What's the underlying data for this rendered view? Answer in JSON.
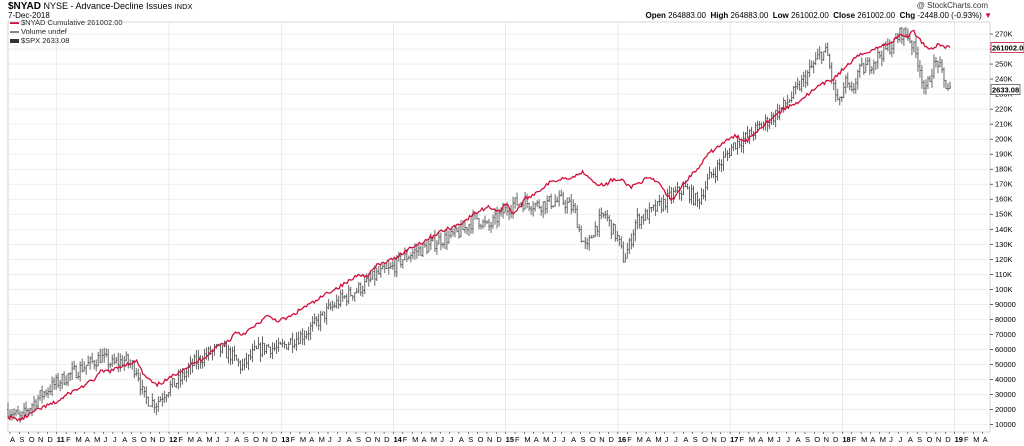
{
  "header": {
    "symbol": "$NYAD",
    "description": "NYSE - Advance-Decline Issues",
    "exchange": "INDX",
    "date": "7-Dec-2018",
    "open_label": "Open",
    "open": "264883.00",
    "high_label": "High",
    "high": "264883.00",
    "low_label": "Low",
    "low": "261002.00",
    "close_label": "Close",
    "close": "261002.00",
    "chg_label": "Chg",
    "chg": "-2448.00 (-0.93%)",
    "credit": "@ StockCharts.com"
  },
  "legend": [
    {
      "text": "$NYAD Cumulative 261002.00",
      "color": "#d0103a"
    },
    {
      "text": "Volume undef",
      "color": "#888888"
    },
    {
      "text": "$SPX 2633.08",
      "color": "#555555"
    }
  ],
  "colors": {
    "ad_line": "#d0103a",
    "spx": "#555555",
    "grid": "#e4e4e4",
    "axis": "#000000"
  },
  "chart_data": {
    "type": "line",
    "title": "$NYAD NYSE - Advance-Decline Issues",
    "yticks": [
      "10000",
      "20000",
      "30000",
      "40000",
      "50000",
      "60000",
      "70000",
      "80000",
      "90000",
      "100K",
      "110K",
      "120K",
      "130K",
      "140K",
      "150K",
      "160K",
      "170K",
      "180K",
      "190K",
      "200K",
      "210K",
      "220K",
      "230K",
      "240K",
      "250K",
      "260K",
      "270K"
    ],
    "ylim": [
      5000,
      278000
    ],
    "scale": "linear",
    "x_ticks": [
      "A",
      "S",
      "O",
      "N",
      "D",
      "11",
      "F",
      "M",
      "A",
      "M",
      "J",
      "J",
      "A",
      "S",
      "O",
      "N",
      "D",
      "12",
      "F",
      "M",
      "A",
      "M",
      "J",
      "J",
      "A",
      "S",
      "O",
      "N",
      "D",
      "13",
      "F",
      "M",
      "A",
      "M",
      "J",
      "J",
      "A",
      "S",
      "O",
      "N",
      "D",
      "14",
      "F",
      "M",
      "A",
      "M",
      "J",
      "J",
      "A",
      "S",
      "O",
      "N",
      "D",
      "15",
      "F",
      "M",
      "A",
      "M",
      "J",
      "J",
      "A",
      "S",
      "O",
      "N",
      "D",
      "16",
      "F",
      "M",
      "A",
      "M",
      "J",
      "J",
      "A",
      "S",
      "O",
      "N",
      "D",
      "17",
      "F",
      "M",
      "A",
      "M",
      "J",
      "J",
      "A",
      "S",
      "O",
      "N",
      "D",
      "18",
      "F",
      "M",
      "A",
      "M",
      "J",
      "J",
      "A",
      "S",
      "O",
      "N",
      "D",
      "19",
      "F",
      "M",
      "A"
    ],
    "last_values": {
      "ad_line": "261002.00",
      "spx": "2633.08"
    },
    "series": [
      {
        "name": "$NYAD Cumulative",
        "points": [
          [
            0,
            15000
          ],
          [
            2,
            13000
          ],
          [
            4,
            18000
          ],
          [
            6,
            22000
          ],
          [
            8,
            25000
          ],
          [
            10,
            31000
          ],
          [
            12,
            35000
          ],
          [
            14,
            40000
          ],
          [
            15,
            45000
          ],
          [
            17,
            46000
          ],
          [
            19,
            50000
          ],
          [
            21,
            52000
          ],
          [
            22,
            43000
          ],
          [
            24,
            36000
          ],
          [
            26,
            40000
          ],
          [
            28,
            46000
          ],
          [
            30,
            50000
          ],
          [
            32,
            55000
          ],
          [
            34,
            62000
          ],
          [
            36,
            66000
          ],
          [
            37,
            72000
          ],
          [
            38,
            70000
          ],
          [
            40,
            75000
          ],
          [
            42,
            82000
          ],
          [
            44,
            79000
          ],
          [
            46,
            82000
          ],
          [
            48,
            88000
          ],
          [
            50,
            92000
          ],
          [
            52,
            98000
          ],
          [
            54,
            102000
          ],
          [
            56,
            107000
          ],
          [
            57,
            111000
          ],
          [
            58,
            108000
          ],
          [
            60,
            116000
          ],
          [
            62,
            119000
          ],
          [
            64,
            124000
          ],
          [
            66,
            129000
          ],
          [
            68,
            133000
          ],
          [
            70,
            138000
          ],
          [
            72,
            141000
          ],
          [
            74,
            145000
          ],
          [
            76,
            151000
          ],
          [
            78,
            155000
          ],
          [
            80,
            152000
          ],
          [
            81,
            158000
          ],
          [
            82,
            150000
          ],
          [
            83,
            154000
          ],
          [
            84,
            160000
          ],
          [
            86,
            165000
          ],
          [
            88,
            171000
          ],
          [
            90,
            174000
          ],
          [
            92,
            175000
          ],
          [
            93,
            178000
          ],
          [
            94,
            177000
          ],
          [
            95,
            172000
          ],
          [
            96,
            170000
          ],
          [
            97,
            169000
          ],
          [
            98,
            173000
          ],
          [
            100,
            172000
          ],
          [
            101,
            168000
          ],
          [
            102,
            170000
          ],
          [
            104,
            174000
          ],
          [
            106,
            170000
          ],
          [
            107,
            162000
          ],
          [
            108,
            160000
          ],
          [
            110,
            172000
          ],
          [
            112,
            180000
          ],
          [
            114,
            191000
          ],
          [
            116,
            197000
          ],
          [
            118,
            202000
          ],
          [
            120,
            199000
          ],
          [
            122,
            207000
          ],
          [
            124,
            214000
          ],
          [
            126,
            220000
          ],
          [
            128,
            224000
          ],
          [
            130,
            230000
          ],
          [
            132,
            236000
          ],
          [
            134,
            240000
          ],
          [
            136,
            248000
          ],
          [
            138,
            255000
          ],
          [
            140,
            259000
          ],
          [
            142,
            262000
          ],
          [
            144,
            266000
          ],
          [
            145,
            270000
          ],
          [
            146,
            268000
          ],
          [
            147,
            272000
          ],
          [
            148,
            267000
          ],
          [
            149,
            262000
          ],
          [
            150,
            260000
          ],
          [
            151,
            263000
          ],
          [
            152,
            262000
          ],
          [
            153,
            261002
          ]
        ]
      },
      {
        "name": "$SPX",
        "points": [
          [
            0,
            20000
          ],
          [
            2,
            14000
          ],
          [
            4,
            24000
          ],
          [
            6,
            32000
          ],
          [
            8,
            38000
          ],
          [
            10,
            43000
          ],
          [
            12,
            48000
          ],
          [
            14,
            52000
          ],
          [
            15,
            55000
          ],
          [
            17,
            50000
          ],
          [
            19,
            53000
          ],
          [
            21,
            46000
          ],
          [
            22,
            28000
          ],
          [
            24,
            24000
          ],
          [
            26,
            34000
          ],
          [
            28,
            40000
          ],
          [
            30,
            50000
          ],
          [
            32,
            56000
          ],
          [
            34,
            60000
          ],
          [
            36,
            57000
          ],
          [
            38,
            48000
          ],
          [
            40,
            58000
          ],
          [
            42,
            62000
          ],
          [
            44,
            60000
          ],
          [
            46,
            66000
          ],
          [
            48,
            70000
          ],
          [
            50,
            77000
          ],
          [
            52,
            86000
          ],
          [
            54,
            93000
          ],
          [
            56,
            98000
          ],
          [
            58,
            103000
          ],
          [
            60,
            110000
          ],
          [
            62,
            113000
          ],
          [
            64,
            120000
          ],
          [
            66,
            125000
          ],
          [
            68,
            128000
          ],
          [
            70,
            133000
          ],
          [
            72,
            135000
          ],
          [
            74,
            140000
          ],
          [
            76,
            148000
          ],
          [
            78,
            141000
          ],
          [
            80,
            150000
          ],
          [
            82,
            157000
          ],
          [
            84,
            158000
          ],
          [
            86,
            156000
          ],
          [
            88,
            158000
          ],
          [
            90,
            159000
          ],
          [
            92,
            153000
          ],
          [
            93,
            136000
          ],
          [
            94,
            126000
          ],
          [
            95,
            139000
          ],
          [
            96,
            145000
          ],
          [
            97,
            150000
          ],
          [
            98,
            141000
          ],
          [
            99,
            134000
          ],
          [
            100,
            120000
          ],
          [
            101,
            130000
          ],
          [
            102,
            146000
          ],
          [
            104,
            150000
          ],
          [
            106,
            156000
          ],
          [
            108,
            163000
          ],
          [
            110,
            167000
          ],
          [
            112,
            158000
          ],
          [
            114,
            175000
          ],
          [
            116,
            185000
          ],
          [
            118,
            197000
          ],
          [
            120,
            201000
          ],
          [
            122,
            208000
          ],
          [
            124,
            214000
          ],
          [
            126,
            222000
          ],
          [
            128,
            232000
          ],
          [
            130,
            244000
          ],
          [
            132,
            257000
          ],
          [
            133,
            258000
          ],
          [
            134,
            236000
          ],
          [
            135,
            222000
          ],
          [
            136,
            238000
          ],
          [
            137,
            229000
          ],
          [
            138,
            244000
          ],
          [
            140,
            250000
          ],
          [
            142,
            258000
          ],
          [
            144,
            264000
          ],
          [
            145,
            271000
          ],
          [
            146,
            270000
          ],
          [
            147,
            262000
          ],
          [
            148,
            250000
          ],
          [
            149,
            230000
          ],
          [
            150,
            246000
          ],
          [
            151,
            252000
          ],
          [
            152,
            238000
          ],
          [
            153,
            233000
          ]
        ]
      }
    ]
  }
}
